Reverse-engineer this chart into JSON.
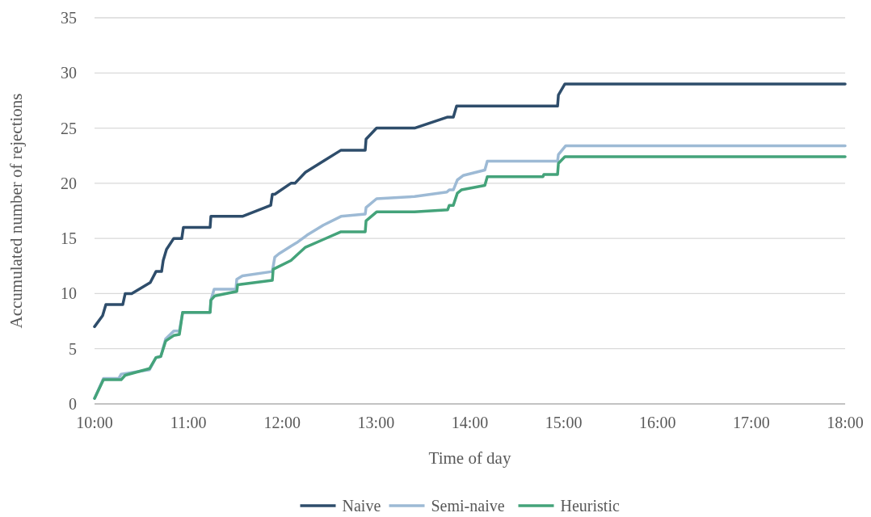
{
  "chart_data": {
    "type": "line",
    "xlabel": "Time of day",
    "ylabel": "Accumulated number of rejections",
    "xlim": [
      10,
      18
    ],
    "xticks": [
      {
        "value": 10,
        "label": "10:00"
      },
      {
        "value": 11,
        "label": "11:00"
      },
      {
        "value": 12,
        "label": "12:00"
      },
      {
        "value": 13,
        "label": "13:00"
      },
      {
        "value": 14,
        "label": "14:00"
      },
      {
        "value": 15,
        "label": "15:00"
      },
      {
        "value": 16,
        "label": "16:00"
      },
      {
        "value": 17,
        "label": "17:00"
      },
      {
        "value": 18,
        "label": "18:00"
      }
    ],
    "ylim": [
      0,
      35
    ],
    "yticks": [
      0,
      5,
      10,
      15,
      20,
      25,
      30,
      35
    ],
    "grid": "y",
    "legend": "bottom",
    "marker": "none",
    "line_style": "solid",
    "series": [
      {
        "name": "Naive",
        "color": "#2e4d6b",
        "x": [
          10,
          10.086,
          10.121,
          10.301,
          10.327,
          10.396,
          10.594,
          10.655,
          10.715,
          10.732,
          10.767,
          10.844,
          10.93,
          10.947,
          11.232,
          11.24,
          11.576,
          11.878,
          11.895,
          11.921,
          12.093,
          12.136,
          12.248,
          12.438,
          12.627,
          12.885,
          12.894,
          13.006,
          13.411,
          13.764,
          13.824,
          13.859,
          14.935,
          14.944,
          15.013,
          18
        ],
        "values": [
          7,
          8,
          9,
          9,
          10,
          10,
          11,
          12,
          12,
          13,
          14,
          15,
          15,
          16,
          16,
          17,
          17,
          18,
          19,
          19,
          20,
          20,
          21,
          22,
          23,
          23,
          24,
          25,
          25,
          26,
          26,
          27,
          27,
          28,
          29,
          29
        ]
      },
      {
        "name": "Semi-naive",
        "color": "#9dbad5",
        "x": [
          10,
          10.095,
          10.258,
          10.284,
          10.586,
          10.655,
          10.706,
          10.758,
          10.844,
          10.904,
          10.939,
          11.232,
          11.24,
          11.275,
          11.507,
          11.516,
          11.576,
          11.895,
          11.921,
          11.964,
          12.093,
          12.153,
          12.265,
          12.438,
          12.627,
          12.885,
          12.894,
          13.006,
          13.411,
          13.755,
          13.781,
          13.824,
          13.867,
          13.928,
          14.16,
          14.186,
          14.935,
          14.944,
          15.022,
          18
        ],
        "values": [
          0.5,
          2.3,
          2.3,
          2.7,
          3.1,
          4.2,
          4.3,
          5.9,
          6.6,
          6.6,
          8.3,
          8.3,
          9.4,
          10.4,
          10.4,
          11.3,
          11.6,
          12,
          13.3,
          13.6,
          14.3,
          14.6,
          15.3,
          16.2,
          17,
          17.2,
          17.8,
          18.6,
          18.8,
          19.2,
          19.4,
          19.4,
          20.3,
          20.7,
          21.2,
          22,
          22,
          22.6,
          23.4,
          23.4
        ]
      },
      {
        "name": "Heuristic",
        "color": "#44a37a",
        "x": [
          10,
          10.095,
          10.284,
          10.327,
          10.586,
          10.655,
          10.706,
          10.758,
          10.844,
          10.904,
          10.939,
          11.232,
          11.24,
          11.283,
          11.516,
          11.525,
          11.895,
          11.904,
          12.093,
          12.248,
          12.438,
          12.627,
          12.885,
          12.894,
          13.006,
          13.411,
          13.764,
          13.781,
          13.824,
          13.867,
          13.91,
          14.16,
          14.186,
          14.78,
          14.789,
          14.935,
          14.944,
          15.013,
          18
        ],
        "values": [
          0.5,
          2.2,
          2.2,
          2.6,
          3.2,
          4.2,
          4.3,
          5.7,
          6.2,
          6.3,
          8.3,
          8.3,
          9.4,
          9.8,
          10.2,
          10.8,
          11.2,
          12.2,
          13,
          14.2,
          14.9,
          15.6,
          15.6,
          16.6,
          17.4,
          17.4,
          17.6,
          18,
          18,
          19.1,
          19.4,
          19.8,
          20.6,
          20.6,
          20.8,
          20.8,
          21.8,
          22.4,
          22.4
        ]
      }
    ]
  }
}
